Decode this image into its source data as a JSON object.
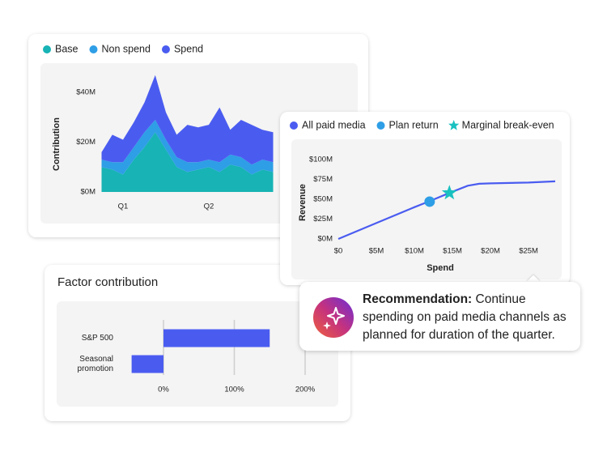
{
  "chart_data": [
    {
      "type": "area",
      "stacked": true,
      "ylabel": "Contribution",
      "categories": [
        null,
        null,
        "Q1",
        null,
        null,
        null,
        null,
        null,
        null,
        null,
        "Q2",
        null,
        null,
        null,
        null,
        null,
        null
      ],
      "series": [
        {
          "name": "Base",
          "color": "#17b3b5",
          "values": [
            10,
            9,
            7,
            13,
            18,
            24,
            17,
            10,
            8,
            9,
            10,
            8,
            11,
            10,
            7,
            9,
            8
          ]
        },
        {
          "name": "Non spend",
          "color": "#2e9ee6",
          "values": [
            3,
            3,
            5,
            5,
            6,
            5,
            4,
            4,
            4,
            3,
            3,
            4,
            4,
            4,
            4,
            4,
            4
          ]
        },
        {
          "name": "Spend",
          "color": "#4a5cf0",
          "values": [
            3,
            11,
            9,
            10,
            12,
            18,
            11,
            9,
            15,
            14,
            14,
            22,
            10,
            15,
            16,
            12,
            12
          ]
        }
      ],
      "ylim": [
        0,
        50
      ],
      "yticks": [
        {
          "value": 0,
          "label": "$0M"
        },
        {
          "value": 20,
          "label": "$20M"
        },
        {
          "value": 40,
          "label": "$40M"
        }
      ]
    },
    {
      "type": "line",
      "xlabel": "Spend",
      "ylabel": "Revenue",
      "series": [
        {
          "name": "All paid media",
          "color": "#4a5cf0",
          "marker": "circle",
          "x": [
            0,
            5,
            10,
            12,
            14.6,
            17,
            18.5,
            20,
            25,
            28.5
          ],
          "values": [
            0,
            20,
            40,
            47.5,
            58,
            67,
            69.5,
            70,
            71,
            72.5
          ]
        },
        {
          "name": "Plan return",
          "color": "#2e9ee6",
          "marker": "circle",
          "x": [
            12
          ],
          "values": [
            47
          ]
        },
        {
          "name": "Marginal break-even",
          "color": "#19c0c0",
          "marker": "star",
          "x": [
            14.6
          ],
          "values": [
            58
          ]
        }
      ],
      "xlim": [
        0,
        28.5
      ],
      "xticks": [
        {
          "value": 0,
          "label": "$0"
        },
        {
          "value": 5,
          "label": "$5M"
        },
        {
          "value": 10,
          "label": "$10M"
        },
        {
          "value": 15,
          "label": "$15M"
        },
        {
          "value": 20,
          "label": "$20M"
        },
        {
          "value": 25,
          "label": "$25M"
        }
      ],
      "ylim": [
        0,
        100
      ],
      "yticks": [
        {
          "value": 0,
          "label": "$0M"
        },
        {
          "value": 25,
          "label": "$25M"
        },
        {
          "value": 50,
          "label": "$50M"
        },
        {
          "value": 75,
          "label": "$75M"
        },
        {
          "value": 100,
          "label": "$100M"
        }
      ]
    },
    {
      "type": "bar",
      "orientation": "horizontal",
      "title": "Factor contribution",
      "color": "#4a5cf0",
      "grid": true,
      "categories": [
        "S&P 500",
        "Seasonal promotion"
      ],
      "values": [
        150,
        -45
      ],
      "xlim": [
        -100,
        200
      ],
      "xticks": [
        {
          "value": 0,
          "label": "0%"
        },
        {
          "value": 100,
          "label": "100%"
        },
        {
          "value": 200,
          "label": "200%"
        }
      ]
    }
  ],
  "recommendation": {
    "label": "Recommendation:",
    "text": "Continue spending on paid media channels as planned for duration of the quarter."
  }
}
